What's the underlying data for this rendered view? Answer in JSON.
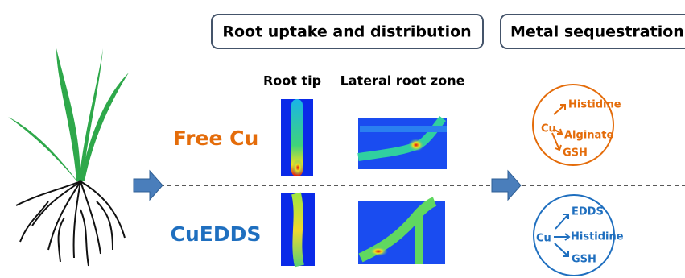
{
  "panels": [
    {
      "title": "Root uptake and distribution"
    },
    {
      "title": "Metal sequestration"
    }
  ],
  "columns": [
    "Root tip",
    "Lateral root zone"
  ],
  "rows": [
    {
      "label": "Free Cu",
      "color": "#e46c0a",
      "species": {
        "center": "Cu",
        "items": [
          "Histidine",
          "Alginate",
          "GSH"
        ]
      }
    },
    {
      "label": "CuEDDS",
      "color": "#1f6fbf",
      "species": {
        "center": "Cu",
        "items": [
          "EDDS",
          "Histidine",
          "GSH"
        ]
      }
    }
  ]
}
